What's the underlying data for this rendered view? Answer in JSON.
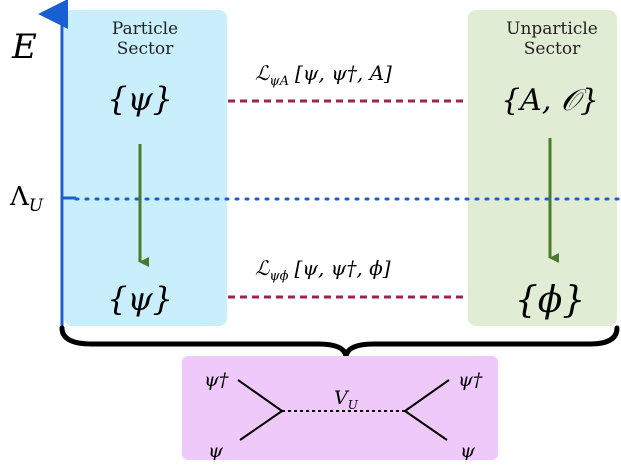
{
  "axis": {
    "energy_label": "E",
    "scale_label": "Λ",
    "scale_subscript": "U"
  },
  "particle_sector": {
    "title_line1": "Particle",
    "title_line2": "Sector",
    "top_field": "{ψ}",
    "bottom_field": "{ψ}",
    "color": "#c9eefc"
  },
  "unparticle_sector": {
    "title_line1": "Unparticle",
    "title_line2": "Sector",
    "top_field": "{A, 𝒪}",
    "bottom_field": "{ϕ}",
    "color": "#e1ecd4"
  },
  "couplings": {
    "upper": {
      "lagrangian": "ℒ",
      "sub": "ψA",
      "args": "[ψ, ψ†, A]"
    },
    "lower": {
      "lagrangian": "ℒ",
      "sub": "ψϕ",
      "args": "[ψ, ψ†, ϕ]"
    }
  },
  "diagram": {
    "box_color": "#efc9fa",
    "propagator_label": "V",
    "propagator_sub": "U",
    "top_left": "ψ†",
    "top_right": "ψ†",
    "bottom_left": "ψ",
    "bottom_right": "ψ"
  },
  "colors": {
    "axis": "#1a5fd1",
    "scale_line": "#1a5fd1",
    "coupling_line": "#9c2454",
    "flow_arrow": "#4a7a2e"
  }
}
